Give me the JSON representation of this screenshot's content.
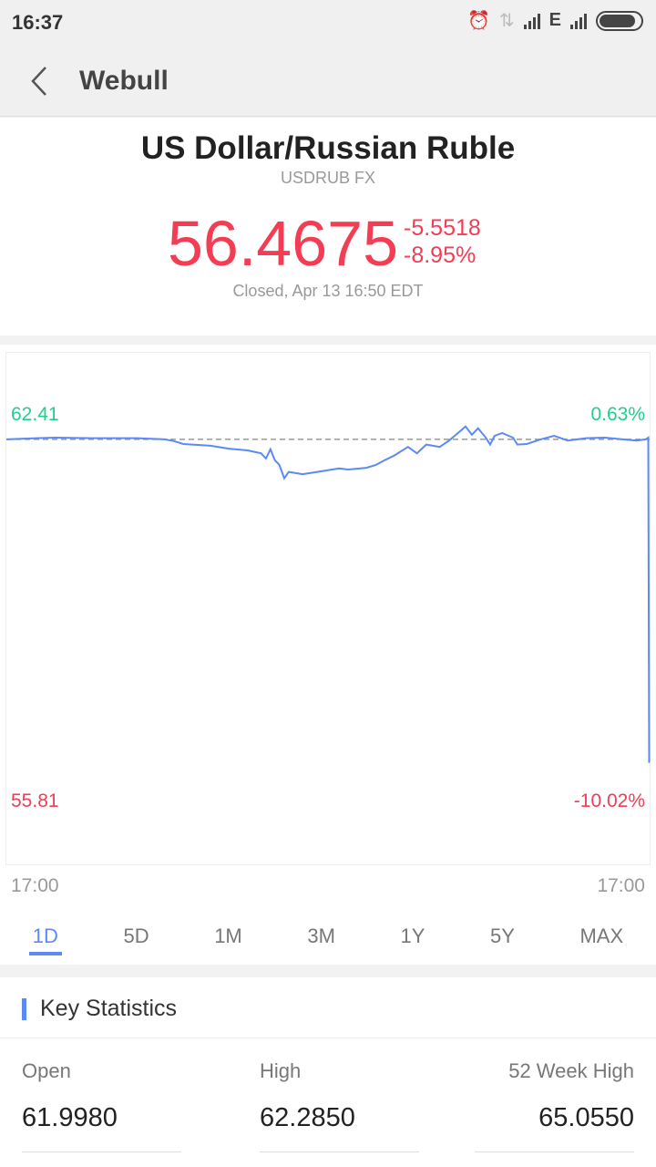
{
  "status_bar": {
    "time": "16:37",
    "network": "E"
  },
  "nav": {
    "title": "Webull"
  },
  "quote": {
    "name": "US Dollar/Russian Ruble",
    "symbol": "USDRUB FX",
    "price": "56.4675",
    "change": "-5.5518",
    "change_pct": "-8.95%",
    "status": "Closed, Apr 13 16:50 EDT"
  },
  "colors": {
    "down": "#f23d55",
    "up": "#1fcf8d",
    "line": "#5b8af5"
  },
  "chart_data": {
    "type": "line",
    "y_high_label": "62.41",
    "y_low_label": "55.81",
    "pct_high_label": "0.63%",
    "pct_low_label": "-10.02%",
    "x_start_label": "17:00",
    "x_end_label": "17:00",
    "ylim": [
      55.81,
      62.41
    ],
    "previous_close": 62.0193,
    "points": [
      [
        "17:00",
        62.02
      ],
      [
        "18:08",
        62.04
      ],
      [
        "18:49",
        62.05
      ],
      [
        "20:11",
        62.04
      ],
      [
        "21:53",
        62.04
      ],
      [
        "22:55",
        62.02
      ],
      [
        "23:15",
        61.99
      ],
      [
        "23:36",
        61.94
      ],
      [
        "00:37",
        61.91
      ],
      [
        "01:18",
        61.86
      ],
      [
        "02:00",
        61.83
      ],
      [
        "02:30",
        61.78
      ],
      [
        "02:41",
        61.69
      ],
      [
        "02:51",
        61.85
      ],
      [
        "03:01",
        61.66
      ],
      [
        "03:11",
        61.58
      ],
      [
        "03:22",
        61.35
      ],
      [
        "03:32",
        61.46
      ],
      [
        "04:03",
        61.42
      ],
      [
        "04:44",
        61.47
      ],
      [
        "05:25",
        61.52
      ],
      [
        "05:45",
        61.5
      ],
      [
        "06:26",
        61.53
      ],
      [
        "06:47",
        61.58
      ],
      [
        "07:07",
        61.66
      ],
      [
        "07:28",
        61.74
      ],
      [
        "07:59",
        61.89
      ],
      [
        "08:19",
        61.78
      ],
      [
        "08:40",
        61.93
      ],
      [
        "09:10",
        61.89
      ],
      [
        "09:31",
        62.0
      ],
      [
        "09:51",
        62.13
      ],
      [
        "10:08",
        62.24
      ],
      [
        "10:22",
        62.1
      ],
      [
        "10:36",
        62.21
      ],
      [
        "10:53",
        62.05
      ],
      [
        "11:03",
        61.93
      ],
      [
        "11:13",
        62.08
      ],
      [
        "11:30",
        62.13
      ],
      [
        "11:54",
        62.05
      ],
      [
        "12:04",
        61.93
      ],
      [
        "12:25",
        61.94
      ],
      [
        "12:56",
        62.02
      ],
      [
        "13:26",
        62.08
      ],
      [
        "13:57",
        62.0
      ],
      [
        "14:38",
        62.04
      ],
      [
        "15:19",
        62.05
      ],
      [
        "16:00",
        62.02
      ],
      [
        "16:31",
        62.0
      ],
      [
        "16:51",
        62.02
      ],
      [
        "16:57",
        62.05
      ],
      [
        "16:59",
        56.47
      ],
      [
        "17:00",
        56.4675
      ]
    ]
  },
  "range_tabs": [
    {
      "label": "1D",
      "active": true
    },
    {
      "label": "5D"
    },
    {
      "label": "1M"
    },
    {
      "label": "3M"
    },
    {
      "label": "1Y"
    },
    {
      "label": "5Y"
    },
    {
      "label": "MAX"
    }
  ],
  "key_statistics": {
    "title": "Key Statistics",
    "items": [
      {
        "label": "Open",
        "value": "61.9980"
      },
      {
        "label": "High",
        "value": "62.2850"
      },
      {
        "label": "52 Week High",
        "value": "65.0550"
      }
    ]
  }
}
